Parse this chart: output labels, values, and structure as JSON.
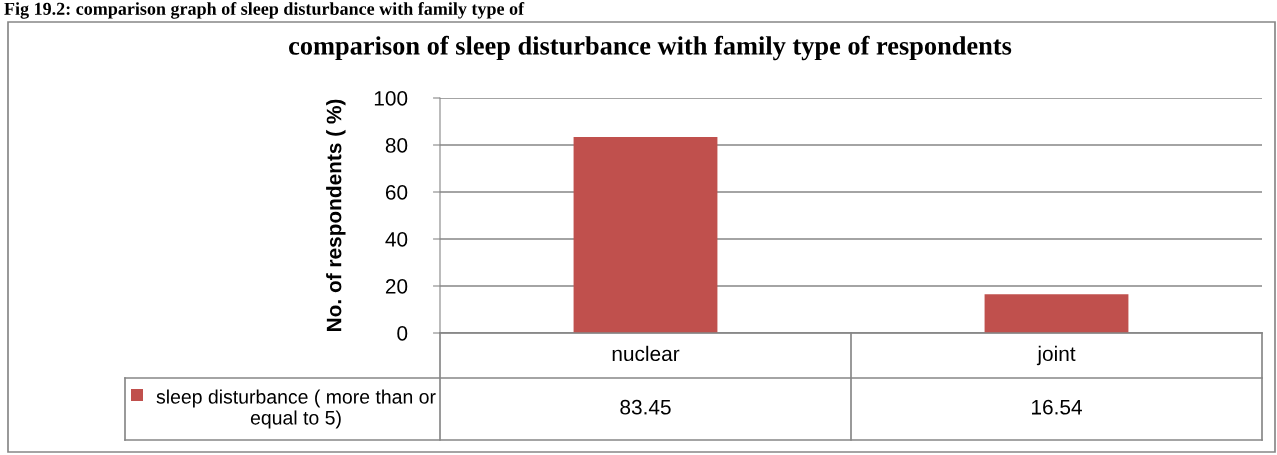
{
  "chart_data": {
    "type": "bar",
    "title": "comparison of sleep disturbance with family type of respondents",
    "ylabel": "No. of respondents ( %)",
    "annotations": [
      "Fig 19.2: comparison graph of sleep disturbance with family type of"
    ],
    "categories": [
      "nuclear",
      "joint"
    ],
    "series": [
      {
        "name": "sleep disturbance ( more than or equal to 5)",
        "color": "#c0504d",
        "values": [
          83.45,
          16.54
        ]
      }
    ],
    "ylim": [
      0,
      100
    ],
    "yticks": [
      0,
      20,
      40,
      60,
      80,
      100
    ],
    "grid": "y",
    "data_labels": true
  }
}
